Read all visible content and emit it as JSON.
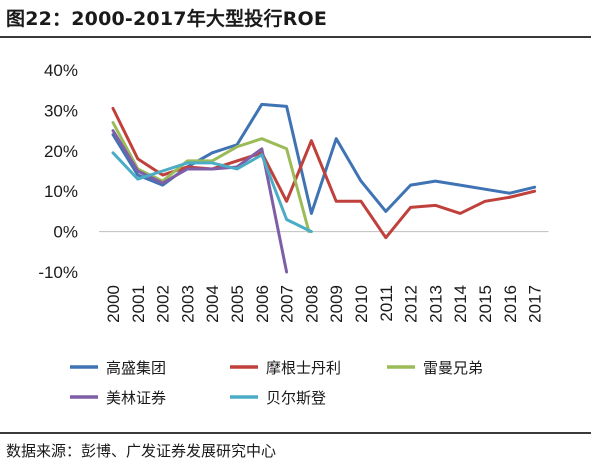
{
  "header": {
    "title": "图22：2000-2017年大型投行ROE"
  },
  "footer": {
    "source": "数据来源：彭博、广发证券发展研究中心"
  },
  "chart_data": {
    "type": "line",
    "title": "图22：2000-2017年大型投行ROE",
    "xlabel": "",
    "ylabel": "",
    "x": [
      "2000",
      "2001",
      "2002",
      "2003",
      "2004",
      "2005",
      "2006",
      "2007",
      "2008",
      "2009",
      "2010",
      "2011",
      "2012",
      "2013",
      "2014",
      "2015",
      "2016",
      "2017"
    ],
    "ylim": [
      -10,
      40
    ],
    "yticks": [
      -10,
      0,
      10,
      20,
      30,
      40
    ],
    "ytick_labels": [
      "-10%",
      "0%",
      "10%",
      "20%",
      "30%",
      "40%"
    ],
    "grid": false,
    "legend_position": "bottom",
    "series": [
      {
        "name": "高盛集团",
        "color": "#3f73b4",
        "values": [
          24,
          14,
          11.5,
          16,
          19.5,
          21.5,
          31.5,
          31,
          4.5,
          23,
          12.5,
          5,
          11.5,
          12.5,
          11.5,
          10.5,
          9.5,
          11
        ]
      },
      {
        "name": "摩根士丹利",
        "color": "#c0403c",
        "values": [
          30.5,
          18,
          14,
          16,
          15.5,
          17.5,
          19.5,
          7.5,
          22.5,
          7.5,
          7.5,
          -1.5,
          6,
          6.5,
          4.5,
          7.5,
          8.5,
          10
        ]
      },
      {
        "name": "雷曼兄弟",
        "color": "#9bbb59",
        "values": [
          27,
          15.5,
          12.5,
          17.5,
          17.5,
          21,
          23,
          20.5,
          null,
          null,
          null,
          null,
          null,
          null,
          null,
          null,
          null,
          null
        ],
        "tail": {
          "x": 7.9,
          "value": 0
        }
      },
      {
        "name": "美林证券",
        "color": "#7e5ea6",
        "values": [
          25,
          15,
          12,
          15.5,
          15.5,
          16,
          20.5,
          -10,
          null,
          null,
          null,
          null,
          null,
          null,
          null,
          null,
          null,
          null
        ]
      },
      {
        "name": "贝尔斯登",
        "color": "#4bacc6",
        "values": [
          19.5,
          13,
          15,
          17,
          17,
          15.5,
          19,
          3,
          0,
          null,
          null,
          null,
          null,
          null,
          null,
          null,
          null,
          null
        ]
      }
    ]
  }
}
